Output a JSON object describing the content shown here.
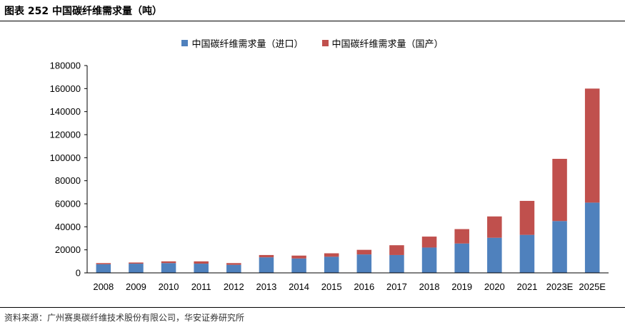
{
  "title": "图表 252  中国碳纤维需求量（吨）",
  "source": "资料来源：广州赛奥碳纤维技术股份有限公司，华安证券研究所",
  "colors": {
    "import": "#4f81bd",
    "domestic": "#c0504d"
  },
  "chart_data": {
    "type": "bar",
    "stacked": true,
    "categories": [
      "2008",
      "2009",
      "2010",
      "2011",
      "2012",
      "2013",
      "2014",
      "2015",
      "2016",
      "2017",
      "2018",
      "2019",
      "2020",
      "2021",
      "2023E",
      "2025E"
    ],
    "series": [
      {
        "name": "中国碳纤维需求量（进口）",
        "values": [
          7500,
          8000,
          8500,
          8000,
          7000,
          13500,
          12500,
          14000,
          16000,
          15500,
          22000,
          25500,
          30500,
          33000,
          45000,
          61000
        ]
      },
      {
        "name": "中国碳纤维需求量（国产）",
        "values": [
          1000,
          1000,
          1500,
          2000,
          1500,
          2000,
          2500,
          3000,
          4000,
          8500,
          9500,
          12500,
          18500,
          29500,
          54000,
          99000
        ]
      }
    ],
    "ylim": [
      0,
      180000
    ],
    "yticks": [
      0,
      20000,
      40000,
      60000,
      80000,
      100000,
      120000,
      140000,
      160000,
      180000
    ],
    "legend_position": "top",
    "grid": false
  }
}
